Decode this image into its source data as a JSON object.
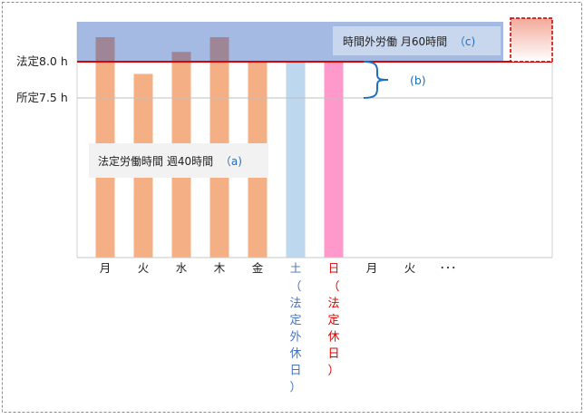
{
  "colors": {
    "workday_bar": "#F4B084",
    "saturday_bar": "#BDD7EE",
    "sunday_bar": "#FF99CC",
    "overtime_band": "#8EA9DB",
    "legal_line": "#E00000",
    "annotation_text": "#1F6FC0",
    "saturday_text": "#4472C4",
    "sunday_text": "#E00000",
    "excess_box_top": "#F2A99A",
    "excess_box_border": "#C00000"
  },
  "y_labels": {
    "legal": "法定8.0 h",
    "scheduled": "所定7.5 h"
  },
  "bars": [
    {
      "label": "月",
      "hours": 9.0,
      "kind": "workday"
    },
    {
      "label": "火",
      "hours": 7.5,
      "kind": "workday"
    },
    {
      "label": "水",
      "hours": 8.4,
      "kind": "workday"
    },
    {
      "label": "木",
      "hours": 9.0,
      "kind": "workday"
    },
    {
      "label": "金",
      "hours": 8.0,
      "kind": "workday"
    },
    {
      "label": "土",
      "hours": 8.0,
      "kind": "saturday"
    },
    {
      "label": "日",
      "hours": 8.0,
      "kind": "sunday"
    },
    {
      "label": "月",
      "hours": 0,
      "kind": "none"
    },
    {
      "label": "火",
      "hours": 0,
      "kind": "none"
    },
    {
      "label": "･･･",
      "hours": 0,
      "kind": "none"
    }
  ],
  "sub_labels": {
    "saturday": [
      "（",
      "法",
      "定",
      "外",
      "休",
      "日",
      "）"
    ],
    "sunday": [
      "（",
      "法",
      "定",
      "休",
      "日",
      "）"
    ]
  },
  "annotations": {
    "weekly": {
      "text": "法定労働時間 週40時間",
      "mark": "（a)"
    },
    "gap": {
      "mark": "(b)"
    },
    "monthly": {
      "text": "時間外労働 月60時間",
      "mark": "（c)"
    }
  },
  "axis": {
    "legal_hours": 8.0,
    "scheduled_hours": 7.5
  }
}
